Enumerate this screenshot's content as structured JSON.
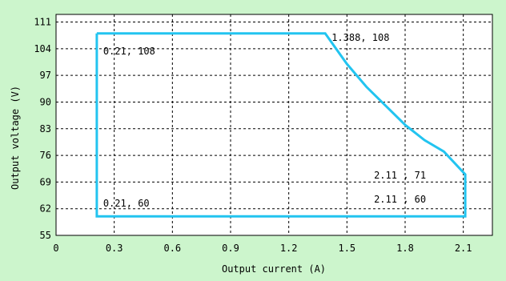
{
  "chart_data": {
    "type": "line",
    "title": "",
    "xlabel": "Output current (A)",
    "ylabel": "Output voltage (V)",
    "xlim": [
      0,
      2.25
    ],
    "ylim": [
      55,
      113
    ],
    "x_ticks": [
      0,
      0.3,
      0.6,
      0.9,
      1.2,
      1.5,
      1.8,
      2.1
    ],
    "x_tick_labels": [
      "0",
      "0.3",
      "0.6",
      "0.9",
      "1.2",
      "1.5",
      "1.8",
      "2.1"
    ],
    "y_ticks": [
      55,
      62,
      69,
      76,
      83,
      90,
      97,
      104,
      111
    ],
    "y_tick_labels": [
      "55",
      "62",
      "69",
      "76",
      "83",
      "90",
      "97",
      "104",
      "111"
    ],
    "grid": true,
    "series": [
      {
        "color": "#22c4f0",
        "x": [
          0.21,
          1.388,
          1.5,
          1.6,
          1.7,
          1.8,
          1.9,
          2.0,
          2.11,
          2.11,
          0.21,
          0.21
        ],
        "y": [
          108,
          108,
          100,
          94,
          89,
          84,
          80,
          77,
          71,
          60,
          60,
          108
        ]
      }
    ],
    "annotations": [
      {
        "text": "0.21, 108",
        "x": 0.21,
        "y": 108
      },
      {
        "text": "1.388, 108",
        "x": 1.388,
        "y": 108
      },
      {
        "text": "2.11 , 71",
        "x": 2.11,
        "y": 71
      },
      {
        "text": "0.21, 60",
        "x": 0.21,
        "y": 60
      },
      {
        "text": "2.11 , 60",
        "x": 2.11,
        "y": 60
      }
    ]
  }
}
